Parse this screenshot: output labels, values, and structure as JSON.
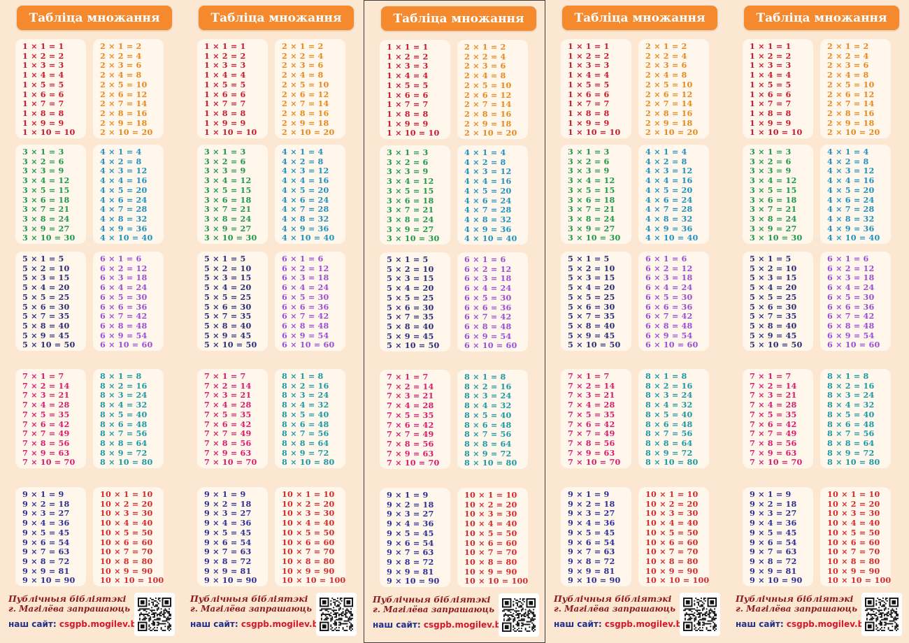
{
  "title": "Табліца множання",
  "footer": {
    "library_line1": "Публічныя бібліятэкі",
    "library_line2": "г. Магілёва запрашаюць",
    "site_label": "наш сайт:",
    "site_url": "csgpb.mogilev.by",
    "qr_icon": "qr-code-icon"
  },
  "strip_count": 5,
  "framed_strip": 3,
  "colors": {
    "background": "#fbe7d2",
    "title_bg": "#f4892e",
    "card_bg": "#fff6ec",
    "t1": "#c81a2e",
    "t2": "#e58a1f",
    "t3": "#1e9a4a",
    "t4": "#1f92c0",
    "t5": "#2b2f7a",
    "t6": "#9b4fd6",
    "t7": "#d81c6e",
    "t8": "#1a9aa4",
    "t9": "#2c2f96",
    "t10": "#d52a2a"
  },
  "tables": [
    {
      "n": 1,
      "lines": [
        "1 × 1 = 1",
        "1 × 2 = 2",
        "1 × 3 = 3",
        "1 × 4 = 4",
        "1 × 5 = 5",
        "1 × 6 = 6",
        "1 × 7 = 7",
        "1 × 8 = 8",
        "1 × 9 = 9",
        "1 × 10 = 10"
      ]
    },
    {
      "n": 2,
      "lines": [
        "2 × 1 = 2",
        "2 × 2 = 4",
        "2 × 3 = 6",
        "2 × 4 = 8",
        "2 × 5 = 10",
        "2 × 6 = 12",
        "2 × 7 = 14",
        "2 × 8 = 16",
        "2 × 9 = 18",
        "2 × 10 = 20"
      ]
    },
    {
      "n": 3,
      "lines": [
        "3 × 1 = 3",
        "3 × 2 = 6",
        "3 × 3 = 9",
        "3 × 4 = 12",
        "3 × 5 = 15",
        "3 × 6 = 18",
        "3 × 7 = 21",
        "3 × 8 = 24",
        "3 × 9 = 27",
        "3 × 10 = 30"
      ]
    },
    {
      "n": 4,
      "lines": [
        "4 × 1 = 4",
        "4 × 2 = 8",
        "4 × 3 = 12",
        "4 × 4 = 16",
        "4 × 5 = 20",
        "4 × 6 = 24",
        "4 × 7 = 28",
        "4 × 8 = 32",
        "4 × 9 = 36",
        "4 × 10 = 40"
      ]
    },
    {
      "n": 5,
      "lines": [
        "5 × 1 = 5",
        "5 × 2 = 10",
        "5 × 3 = 15",
        "5 × 4 = 20",
        "5 × 5 = 25",
        "5 × 6 = 30",
        "5 × 7 = 35",
        "5 × 8 = 40",
        "5 × 9 = 45",
        "5 × 10 = 50"
      ]
    },
    {
      "n": 6,
      "lines": [
        "6 × 1 = 6",
        "6 × 2 = 12",
        "6 × 3 = 18",
        "6 × 4 = 24",
        "6 × 5 = 30",
        "6 × 6 = 36",
        "6 × 7 = 42",
        "6 × 8 = 48",
        "6 × 9 = 54",
        "6 × 10 = 60"
      ]
    },
    {
      "n": 7,
      "lines": [
        "7 × 1 = 7",
        "7 × 2 = 14",
        "7 × 3 = 21",
        "7 × 4 = 28",
        "7 × 5 = 35",
        "7 × 6 = 42",
        "7 × 7 = 49",
        "7 × 8 = 56",
        "7 × 9 = 63",
        "7 × 10 = 70"
      ]
    },
    {
      "n": 8,
      "lines": [
        "8 × 1 = 8",
        "8 × 2 = 16",
        "8 × 3 = 24",
        "8 × 4 = 32",
        "8 × 5 = 40",
        "8 × 6 = 48",
        "8 × 7 = 56",
        "8 × 8 = 64",
        "8 × 9 = 72",
        "8 × 10 = 80"
      ]
    },
    {
      "n": 9,
      "lines": [
        "9 × 1 = 9",
        "9 × 2 = 18",
        "9 × 3 = 27",
        "9 × 4 = 36",
        "9 × 5 = 45",
        "9 × 6 = 54",
        "9 × 7 = 63",
        "9 × 8 = 72",
        "9 × 9 = 81",
        "9 × 10 = 90"
      ]
    },
    {
      "n": 10,
      "lines": [
        "10 × 1 = 10",
        "10 × 2 = 20",
        "10 × 3 = 30",
        "10 × 4 = 40",
        "10 × 5 = 50",
        "10 × 6 = 60",
        "10 × 7 = 70",
        "10 × 8 = 80",
        "10 × 9 = 90",
        "10 × 10 = 100"
      ]
    }
  ]
}
